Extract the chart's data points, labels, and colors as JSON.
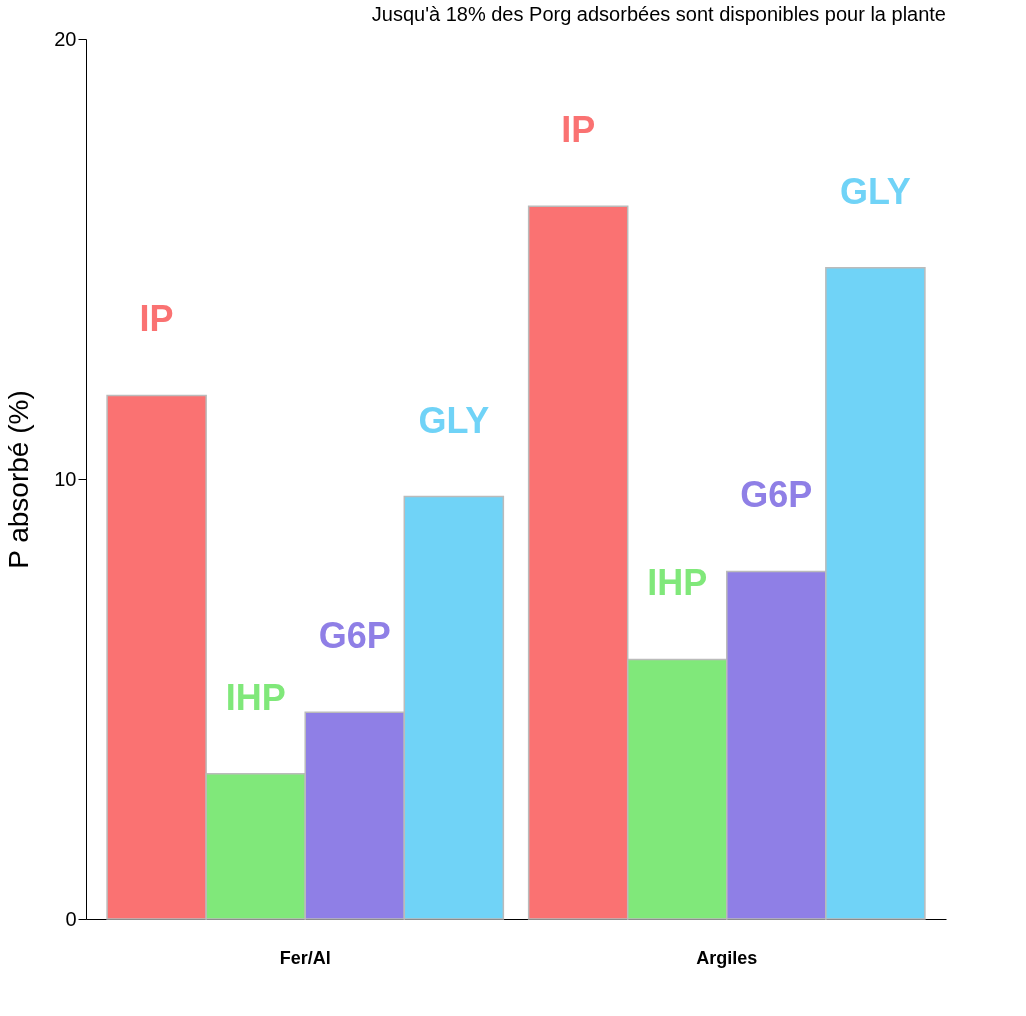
{
  "chart_data": {
    "type": "bar",
    "title": "Jusqu'à 18% des Porg adsorbées sont disponibles pour la plante",
    "ylabel": "P absorbé (%)",
    "categories": [
      "Fer/Al",
      "Argiles"
    ],
    "series": [
      {
        "name": "IP",
        "color": "#fa7272",
        "values": [
          11.9,
          16.2
        ]
      },
      {
        "name": "IHP",
        "color": "#80e87a",
        "values": [
          3.3,
          5.9
        ]
      },
      {
        "name": "G6P",
        "color": "#8f7fe6",
        "values": [
          4.7,
          7.9
        ]
      },
      {
        "name": "GLY",
        "color": "#70d3f7",
        "values": [
          9.6,
          14.8
        ]
      }
    ],
    "ylim": [
      0,
      20
    ],
    "yticks": [
      0,
      10,
      20
    ],
    "grid": false,
    "legend": false
  }
}
